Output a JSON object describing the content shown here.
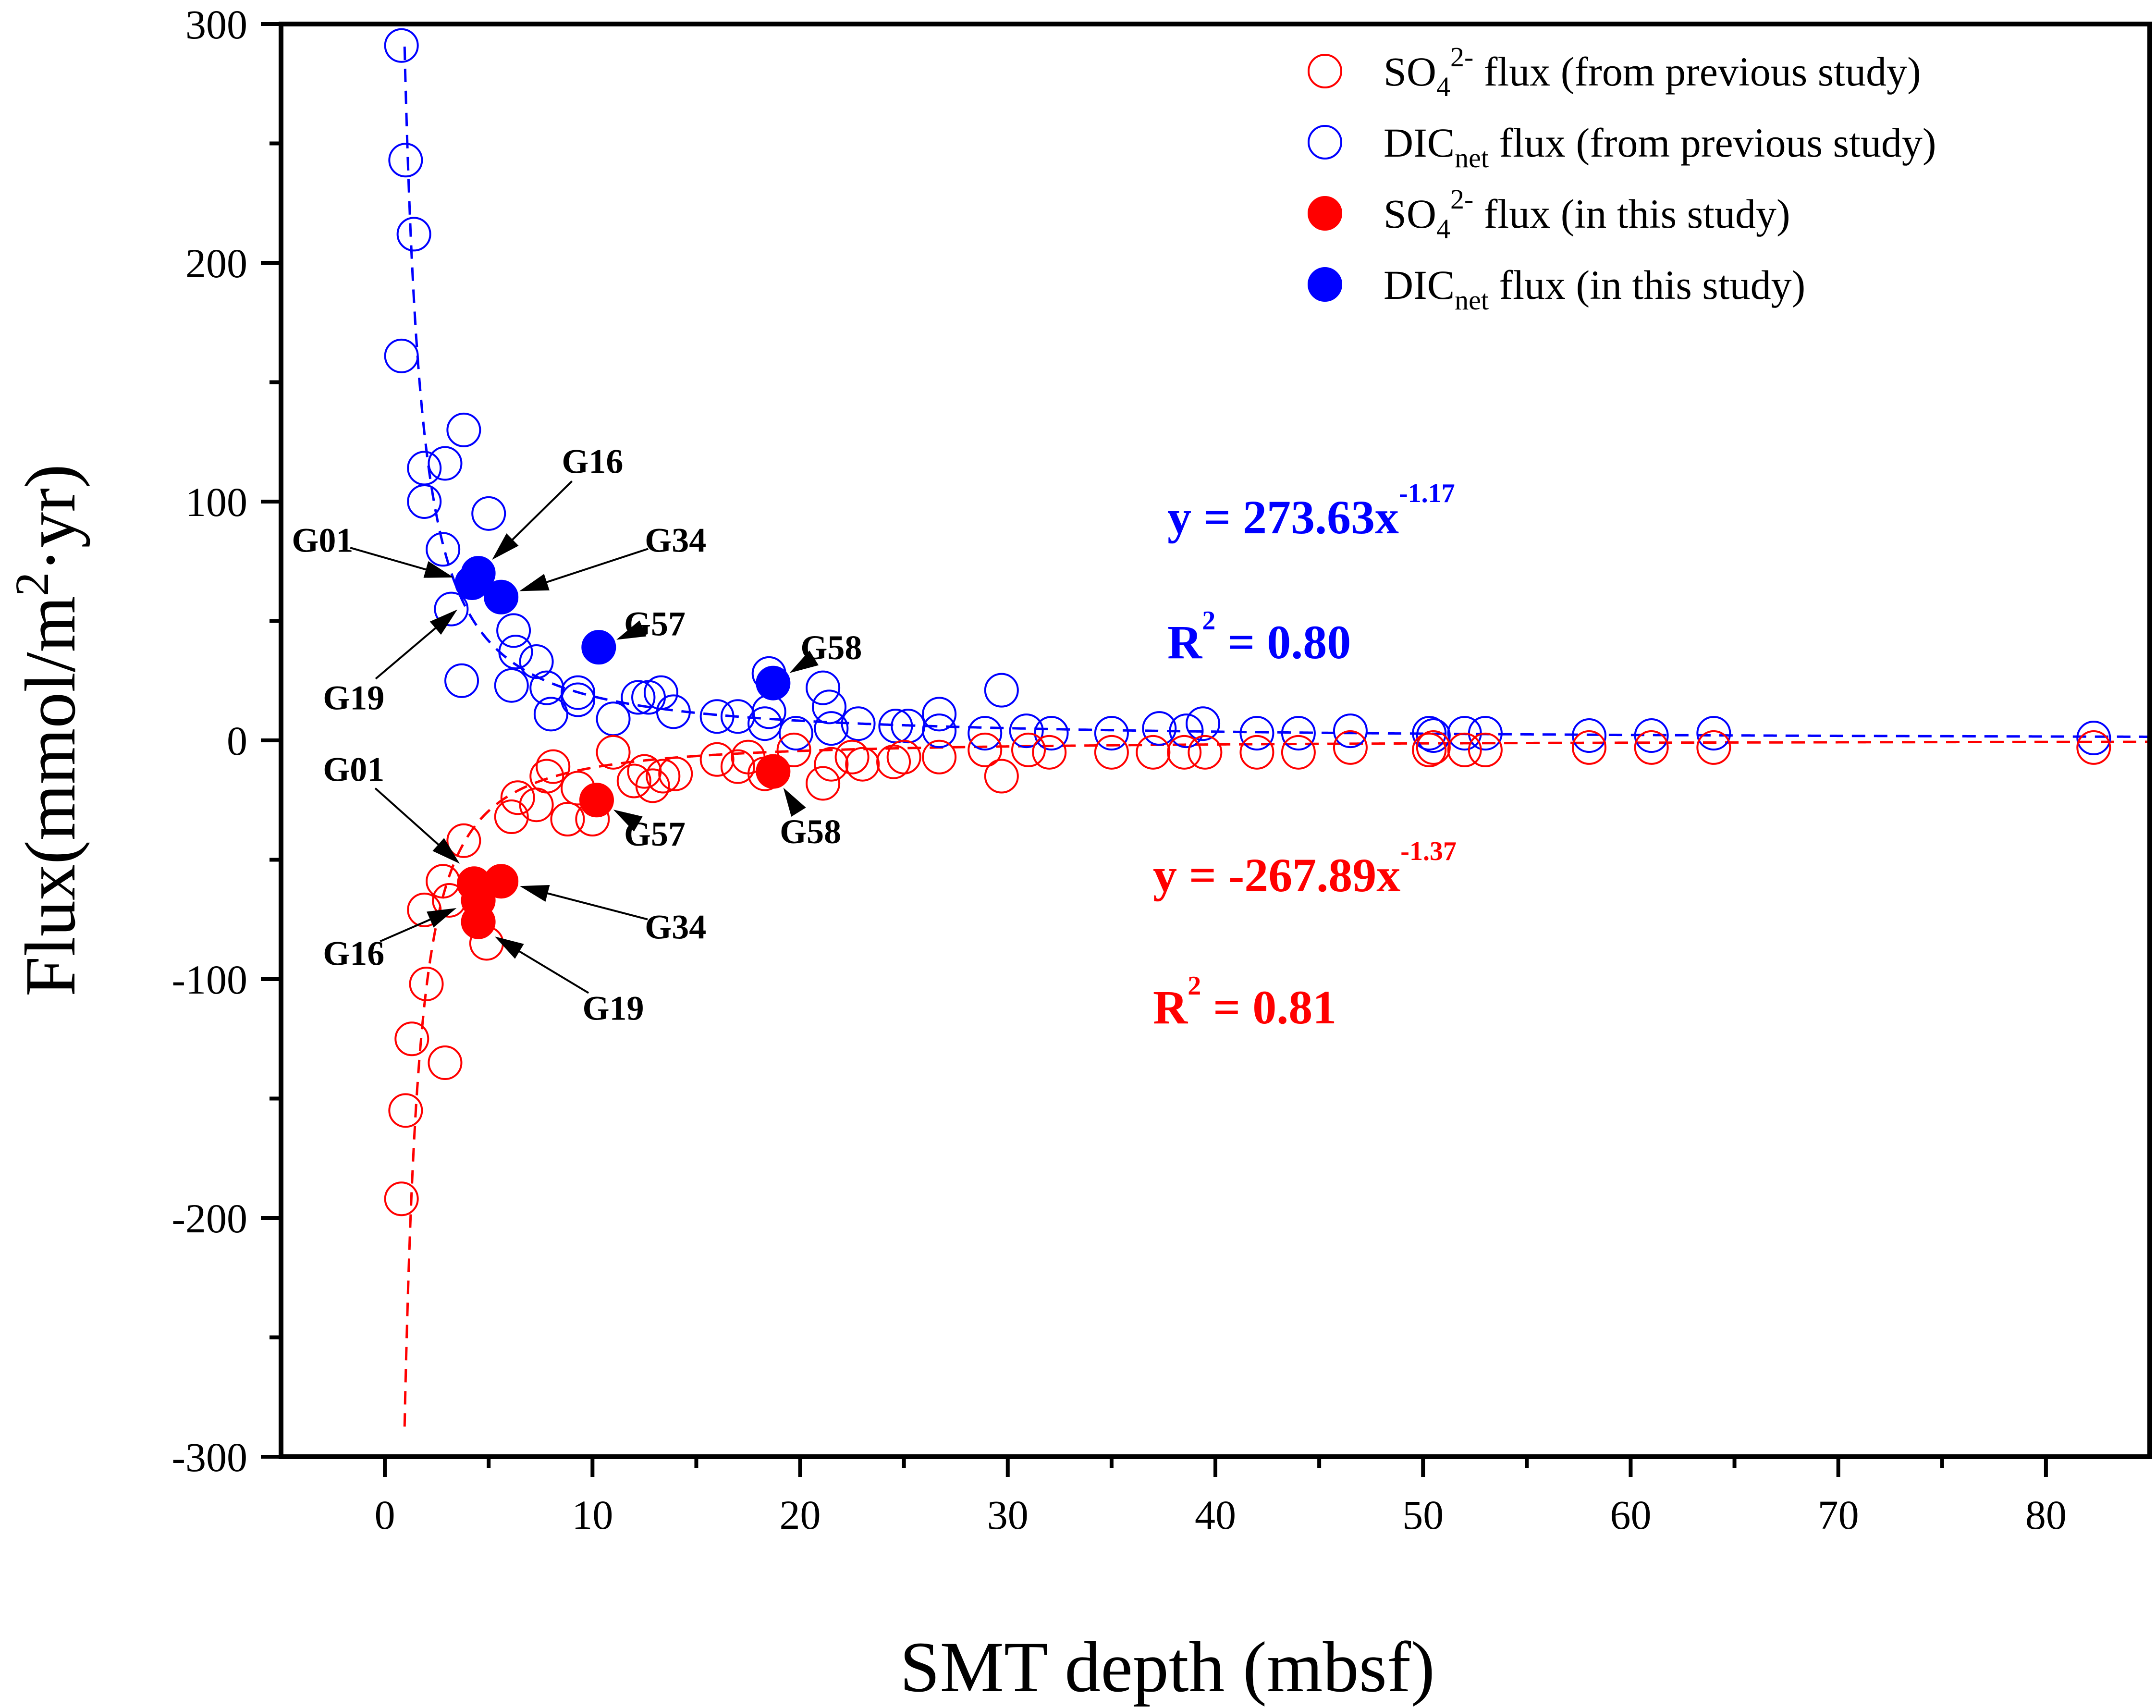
{
  "chart_data": {
    "type": "scatter",
    "xlabel": "SMT depth (mbsf)",
    "ylabel": "Flux(mmol/m²·yr)",
    "ylabel_parts": {
      "pre": "Flux(mmol/m",
      "sup": "2",
      "post": "·yr)"
    },
    "xlim": [
      -5,
      85
    ],
    "ylim": [
      -300,
      300
    ],
    "xticks": [
      0,
      10,
      20,
      30,
      40,
      50,
      60,
      70,
      80
    ],
    "yticks": [
      -300,
      -200,
      -100,
      0,
      100,
      200,
      300
    ],
    "colors": {
      "so4": "#ff0000",
      "dic": "#0000ff"
    },
    "legend": {
      "position": "top-right",
      "entries": [
        {
          "name": "so4_prev",
          "main": "SO",
          "sub": "4",
          "sup": "2-",
          "rest": " flux (from previous study)",
          "color": "#ff0000",
          "filled": false
        },
        {
          "name": "dic_prev",
          "main": "DIC",
          "sub": "net",
          "sup": "",
          "rest": " flux (from previous study)",
          "color": "#0000ff",
          "filled": false
        },
        {
          "name": "so4_this",
          "main": "SO",
          "sub": "4",
          "sup": "2-",
          "rest": " flux (in this study)",
          "color": "#ff0000",
          "filled": true
        },
        {
          "name": "dic_this",
          "main": "DIC",
          "sub": "net",
          "sup": "",
          "rest": " flux (in this study)",
          "color": "#0000ff",
          "filled": true
        }
      ]
    },
    "series": [
      {
        "name": "DICnet flux (from previous study)",
        "color": "#0000ff",
        "filled": false,
        "x": [
          0.8,
          1.0,
          1.4,
          0.8,
          1.9,
          2.9,
          3.8,
          1.9,
          5.0,
          2.8,
          3.2,
          6.2,
          6.3,
          3.7,
          7.3,
          6.1,
          7.8,
          8.0,
          9.3,
          9.3,
          12.2,
          12.7,
          13.3,
          13.9,
          11.0,
          16.0,
          17.0,
          18.3,
          18.5,
          18.5,
          19.8,
          21.1,
          21.4,
          21.5,
          22.8,
          24.6,
          25.2,
          26.7,
          26.7,
          28.9,
          29.7,
          30.9,
          32.1,
          35.0,
          37.3,
          38.6,
          39.4,
          42.0,
          44.0,
          46.5,
          50.3,
          50.5,
          52.0,
          53.0,
          58.0,
          61.0,
          64.0,
          82.3
        ],
        "y": [
          291,
          243,
          212,
          161,
          114,
          116,
          130,
          100,
          95,
          80,
          55,
          46,
          37,
          25,
          33,
          23,
          22,
          11,
          20,
          17,
          18,
          18,
          20,
          12,
          9,
          10,
          10,
          7,
          28,
          12,
          3,
          22,
          14,
          5,
          7,
          6,
          6,
          4,
          11,
          3,
          21,
          4,
          3,
          3,
          5,
          4,
          7,
          3,
          3,
          4,
          3,
          2,
          3,
          3,
          2,
          2,
          3,
          1
        ]
      },
      {
        "name": "SO4 2- flux (from previous study)",
        "color": "#ff0000",
        "filled": false,
        "x": [
          0.8,
          1.0,
          1.3,
          2.0,
          1.9,
          2.9,
          2.8,
          3.1,
          3.8,
          4.9,
          6.1,
          6.4,
          7.3,
          7.8,
          8.1,
          8.8,
          9.3,
          10.0,
          11.0,
          12.0,
          12.5,
          12.9,
          13.4,
          14.0,
          16.0,
          17.0,
          17.5,
          18.3,
          19.7,
          21.1,
          21.5,
          22.5,
          23.0,
          24.5,
          25.0,
          26.7,
          28.9,
          29.7,
          31.0,
          32.0,
          35.0,
          37.0,
          38.5,
          39.5,
          42.0,
          44.0,
          46.5,
          50.3,
          50.5,
          52.0,
          53.0,
          58.0,
          61.0,
          64.0,
          82.3
        ],
        "y": [
          -192,
          -155,
          -125,
          -102,
          -71,
          -135,
          -59,
          -67,
          -42,
          -85,
          -32,
          -24,
          -27,
          -15,
          -11,
          -33,
          -20,
          -33,
          -5,
          -17,
          -13,
          -19,
          -15,
          -14,
          -8,
          -11,
          -7,
          -14,
          -4,
          -18,
          -10,
          -7,
          -10,
          -9,
          -7,
          -7,
          -4,
          -15,
          -4,
          -5,
          -5,
          -5,
          -5,
          -5,
          -5,
          -5,
          -3,
          -4,
          -3,
          -4,
          -4,
          -3,
          -3,
          -3,
          -3
        ]
      },
      {
        "name": "DICnet flux (in this study)",
        "color": "#0000ff",
        "filled": true,
        "x": [
          4.5,
          4.2,
          5.6,
          10.3,
          18.7
        ],
        "y": [
          70,
          66,
          60,
          39,
          24
        ],
        "labels": [
          "G16",
          "G01",
          "G34",
          "G57",
          "G58"
        ]
      },
      {
        "name": "SO4 2- flux (in this study)",
        "color": "#ff0000",
        "filled": true,
        "x": [
          4.3,
          4.5,
          5.6,
          4.5,
          10.2,
          18.7
        ],
        "y": [
          -60,
          -67,
          -59,
          -76,
          -25,
          -13
        ],
        "labels": [
          "G01",
          "G16",
          "G34",
          "G19",
          "G57",
          "G58"
        ]
      }
    ],
    "fits": [
      {
        "series": "DICnet",
        "a": 273.63,
        "b": -1.17,
        "color": "#0000ff",
        "equation_main": "y = 273.63x",
        "equation_exp": "-1.17",
        "r2_value": " = 0.80",
        "r2_letter": "R",
        "r2_exp": "2"
      },
      {
        "series": "SO4",
        "a": -267.89,
        "b": -1.37,
        "color": "#ff0000",
        "equation_main": "y = -267.89x",
        "equation_exp": "-1.37",
        "r2_value": " = 0.81",
        "r2_letter": "R",
        "r2_exp": "2"
      }
    ],
    "annotations": [
      {
        "label": "G16",
        "target": [
          4.5,
          70
        ],
        "text_at": [
          10,
          117
        ],
        "side": "upper"
      },
      {
        "label": "G01",
        "target": [
          4.2,
          66
        ],
        "text_at": [
          -3,
          84
        ],
        "side": "upper"
      },
      {
        "label": "G34",
        "target": [
          5.6,
          60
        ],
        "text_at": [
          14,
          84
        ],
        "side": "upper"
      },
      {
        "label": "G19",
        "target": [
          4.2,
          60
        ],
        "text_at": [
          -1.5,
          18
        ],
        "side": "upper"
      },
      {
        "label": "G57",
        "target": [
          10.3,
          39
        ],
        "text_at": [
          13,
          49
        ],
        "side": "upper"
      },
      {
        "label": "G58",
        "target": [
          18.7,
          24
        ],
        "text_at": [
          21.5,
          39
        ],
        "side": "upper"
      },
      {
        "label": "G01",
        "target": [
          4.3,
          -57
        ],
        "text_at": [
          -1.5,
          -12
        ],
        "side": "lower"
      },
      {
        "label": "G16",
        "target": [
          4.3,
          -67
        ],
        "text_at": [
          -1.5,
          -89
        ],
        "side": "lower"
      },
      {
        "label": "G34",
        "target": [
          5.6,
          -59
        ],
        "text_at": [
          14,
          -78
        ],
        "side": "lower"
      },
      {
        "label": "G19",
        "target": [
          4.5,
          -78
        ],
        "text_at": [
          11,
          -112
        ],
        "side": "lower"
      },
      {
        "label": "G57",
        "target": [
          10.2,
          -25
        ],
        "text_at": [
          13,
          -39
        ],
        "side": "lower"
      },
      {
        "label": "G58",
        "target": [
          18.7,
          -13
        ],
        "text_at": [
          20.5,
          -38
        ],
        "side": "lower"
      }
    ]
  }
}
